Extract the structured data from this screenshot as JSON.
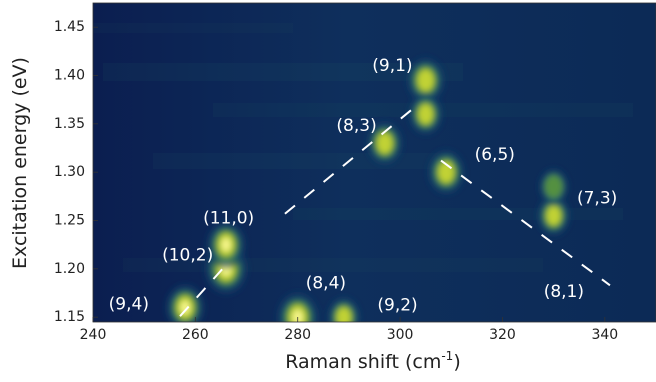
{
  "chart_data": {
    "type": "heatmap",
    "title": "",
    "xlabel": "Raman shift (cm",
    "xlabel_sup": "-1",
    "xlabel_end": ")",
    "ylabel": "Excitation energy (eV)",
    "xlim": [
      240,
      350
    ],
    "ylim": [
      1.145,
      1.475
    ],
    "x_ticks": [
      "240",
      "260",
      "280",
      "300",
      "320",
      "340"
    ],
    "y_ticks": [
      "1.15",
      "1.20",
      "1.25",
      "1.30",
      "1.35",
      "1.40",
      "1.45"
    ],
    "colormap": [
      "#0a1a4a",
      "#0f3d66",
      "#1f6b6a",
      "#5e9a3c",
      "#c7d634",
      "#f5f58a"
    ],
    "peaks": [
      {
        "x": 258,
        "y": 1.16,
        "intensity": 0.8
      },
      {
        "x": 266,
        "y": 1.2,
        "intensity": 1.0
      },
      {
        "x": 266,
        "y": 1.225,
        "intensity": 0.8
      },
      {
        "x": 280,
        "y": 1.15,
        "intensity": 0.95
      },
      {
        "x": 289,
        "y": 1.15,
        "intensity": 0.5
      },
      {
        "x": 297,
        "y": 1.33,
        "intensity": 0.65
      },
      {
        "x": 305,
        "y": 1.395,
        "intensity": 0.75
      },
      {
        "x": 305,
        "y": 1.36,
        "intensity": 0.55
      },
      {
        "x": 309,
        "y": 1.3,
        "intensity": 0.7
      },
      {
        "x": 330,
        "y": 1.255,
        "intensity": 0.5
      },
      {
        "x": 330,
        "y": 1.285,
        "intensity": 0.3
      }
    ],
    "annotations": [
      {
        "label": "(9,1)",
        "x": 298.5,
        "y": 1.41
      },
      {
        "label": "(8,3)",
        "x": 291.5,
        "y": 1.348
      },
      {
        "label": "(6,5)",
        "x": 318.5,
        "y": 1.318
      },
      {
        "label": "(7,3)",
        "x": 338.5,
        "y": 1.273
      },
      {
        "label": "(11,0)",
        "x": 266.5,
        "y": 1.252
      },
      {
        "label": "(10,2)",
        "x": 258.5,
        "y": 1.214
      },
      {
        "label": "(8,4)",
        "x": 285.5,
        "y": 1.185
      },
      {
        "label": "(9,2)",
        "x": 299.5,
        "y": 1.162
      },
      {
        "label": "(8,1)",
        "x": 332.0,
        "y": 1.176
      },
      {
        "label": "(9,4)",
        "x": 247.0,
        "y": 1.163
      }
    ],
    "dashed_lines": [
      [
        [
          257,
          1.151
        ],
        [
          266,
          1.204
        ]
      ],
      [
        [
          277.5,
          1.257
        ],
        [
          303.5,
          1.37
        ]
      ],
      [
        [
          308,
          1.312
        ],
        [
          341,
          1.183
        ]
      ]
    ]
  }
}
